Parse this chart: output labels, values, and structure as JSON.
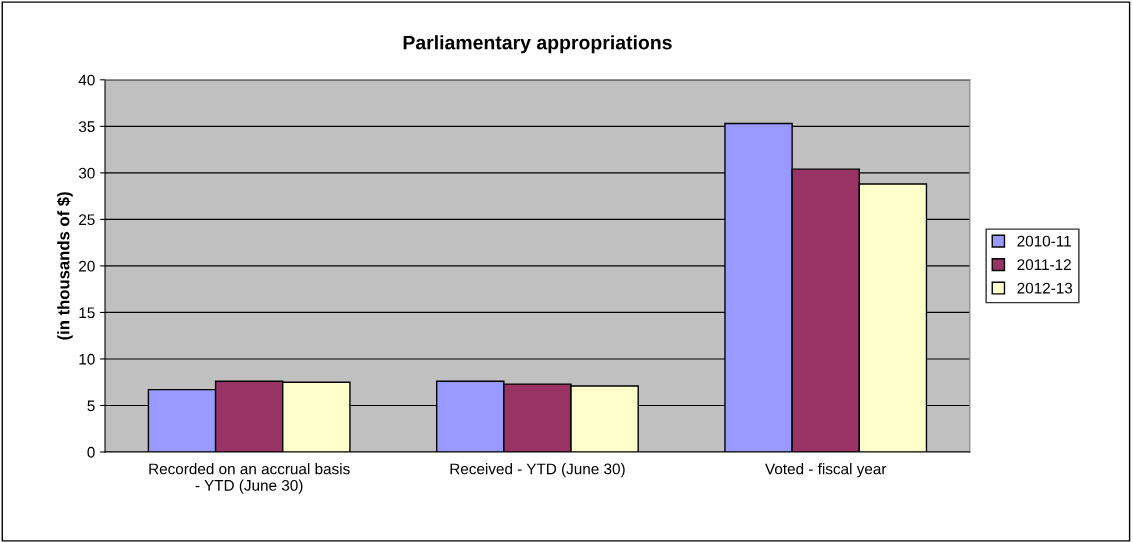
{
  "chart_data": {
    "type": "bar",
    "title": "Parliamentary appropriations",
    "ylabel": "(in thousands of $)",
    "categories": [
      "Recorded on an accrual basis\n- YTD (June 30)",
      "Received - YTD (June 30)",
      "Voted - fiscal year"
    ],
    "series": [
      {
        "name": "2010-11",
        "color": "#9999ff",
        "values": [
          6.7,
          7.6,
          35.3
        ]
      },
      {
        "name": "2011-12",
        "color": "#993366",
        "values": [
          7.6,
          7.3,
          30.4
        ]
      },
      {
        "name": "2012-13",
        "color": "#ffffcc",
        "values": [
          7.5,
          7.1,
          28.8
        ]
      }
    ],
    "ylim": [
      0,
      40
    ],
    "yticks": [
      0,
      5,
      10,
      15,
      20,
      25,
      30,
      35,
      40
    ],
    "grid": "y",
    "legend": "right"
  }
}
